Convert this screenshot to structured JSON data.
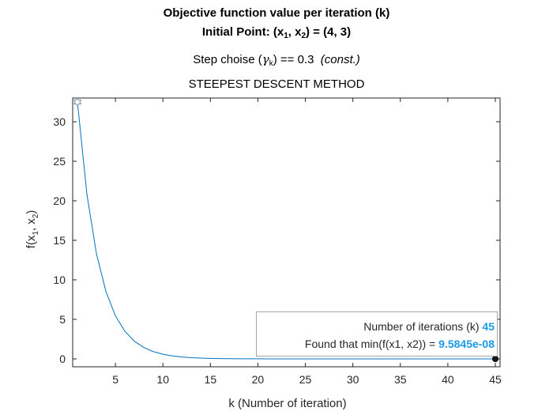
{
  "titles": {
    "line1": "Objective function value per iteration (k)",
    "line2_pre": "Initial Point: (x",
    "line2_sub1": "1",
    "line2_mid": ", x",
    "line2_sub2": "2",
    "line2_post": ") = (4, 3)",
    "line3_pre": "Step choise (",
    "line3_gamma": "γ",
    "line3_sub": "k",
    "line3_post": ") == 0.3  ",
    "line3_italic": "(const.)",
    "line4": "STEEPEST DESCENT METHOD"
  },
  "legend": {
    "iter_label": "Number of iterations (k) ",
    "iter_value": "45",
    "min_label": "Found that min(f(x1, x2)) = ",
    "min_value": "9.5845e-08"
  },
  "chart_data": {
    "type": "line",
    "title": "STEEPEST DESCENT METHOD",
    "xlabel": "k (Number of iteration)",
    "ylabel": "f(x1, x2)",
    "xlim": [
      0.5,
      45.5
    ],
    "ylim": [
      -1,
      33
    ],
    "xticks": [
      5,
      10,
      15,
      20,
      25,
      30,
      35,
      40,
      45
    ],
    "yticks": [
      0,
      5,
      10,
      15,
      20,
      25,
      30
    ],
    "grid": false,
    "colors": {
      "line": "#0072bd",
      "start_marker": "#7f8fa6",
      "end_marker": "#000000",
      "end_fill": "#1a1a1a",
      "highlight": "#1a9be8"
    },
    "series": [
      {
        "x": [
          1,
          2,
          3,
          4,
          5,
          6,
          7,
          8,
          9,
          10,
          11,
          12,
          13,
          14,
          15,
          16,
          17,
          18,
          19,
          20,
          21,
          22,
          23,
          24,
          25,
          26,
          27,
          28,
          29,
          30,
          31,
          32,
          33,
          34,
          35,
          36,
          37,
          38,
          39,
          40,
          41,
          42,
          43,
          44,
          45
        ],
        "y": [
          32.5,
          20.8,
          13.31,
          8.52,
          5.45,
          3.49,
          2.23,
          1.43,
          0.914,
          0.585,
          0.374,
          0.24,
          0.153,
          0.098,
          0.063,
          0.04,
          0.026,
          0.0165,
          0.0105,
          0.0068,
          0.0043,
          0.0028,
          0.0018,
          0.0011,
          0.0007,
          0.00046,
          0.00029,
          0.00019,
          0.00012,
          7.7e-05,
          4.9e-05,
          3.1e-05,
          2e-05,
          1.3e-05,
          8.2e-06,
          5.3e-06,
          3.4e-06,
          2.2e-06,
          1.4e-06,
          9e-07,
          5.7e-07,
          3.7e-07,
          2.3e-07,
          1.5e-07,
          9.6e-08
        ]
      }
    ]
  }
}
